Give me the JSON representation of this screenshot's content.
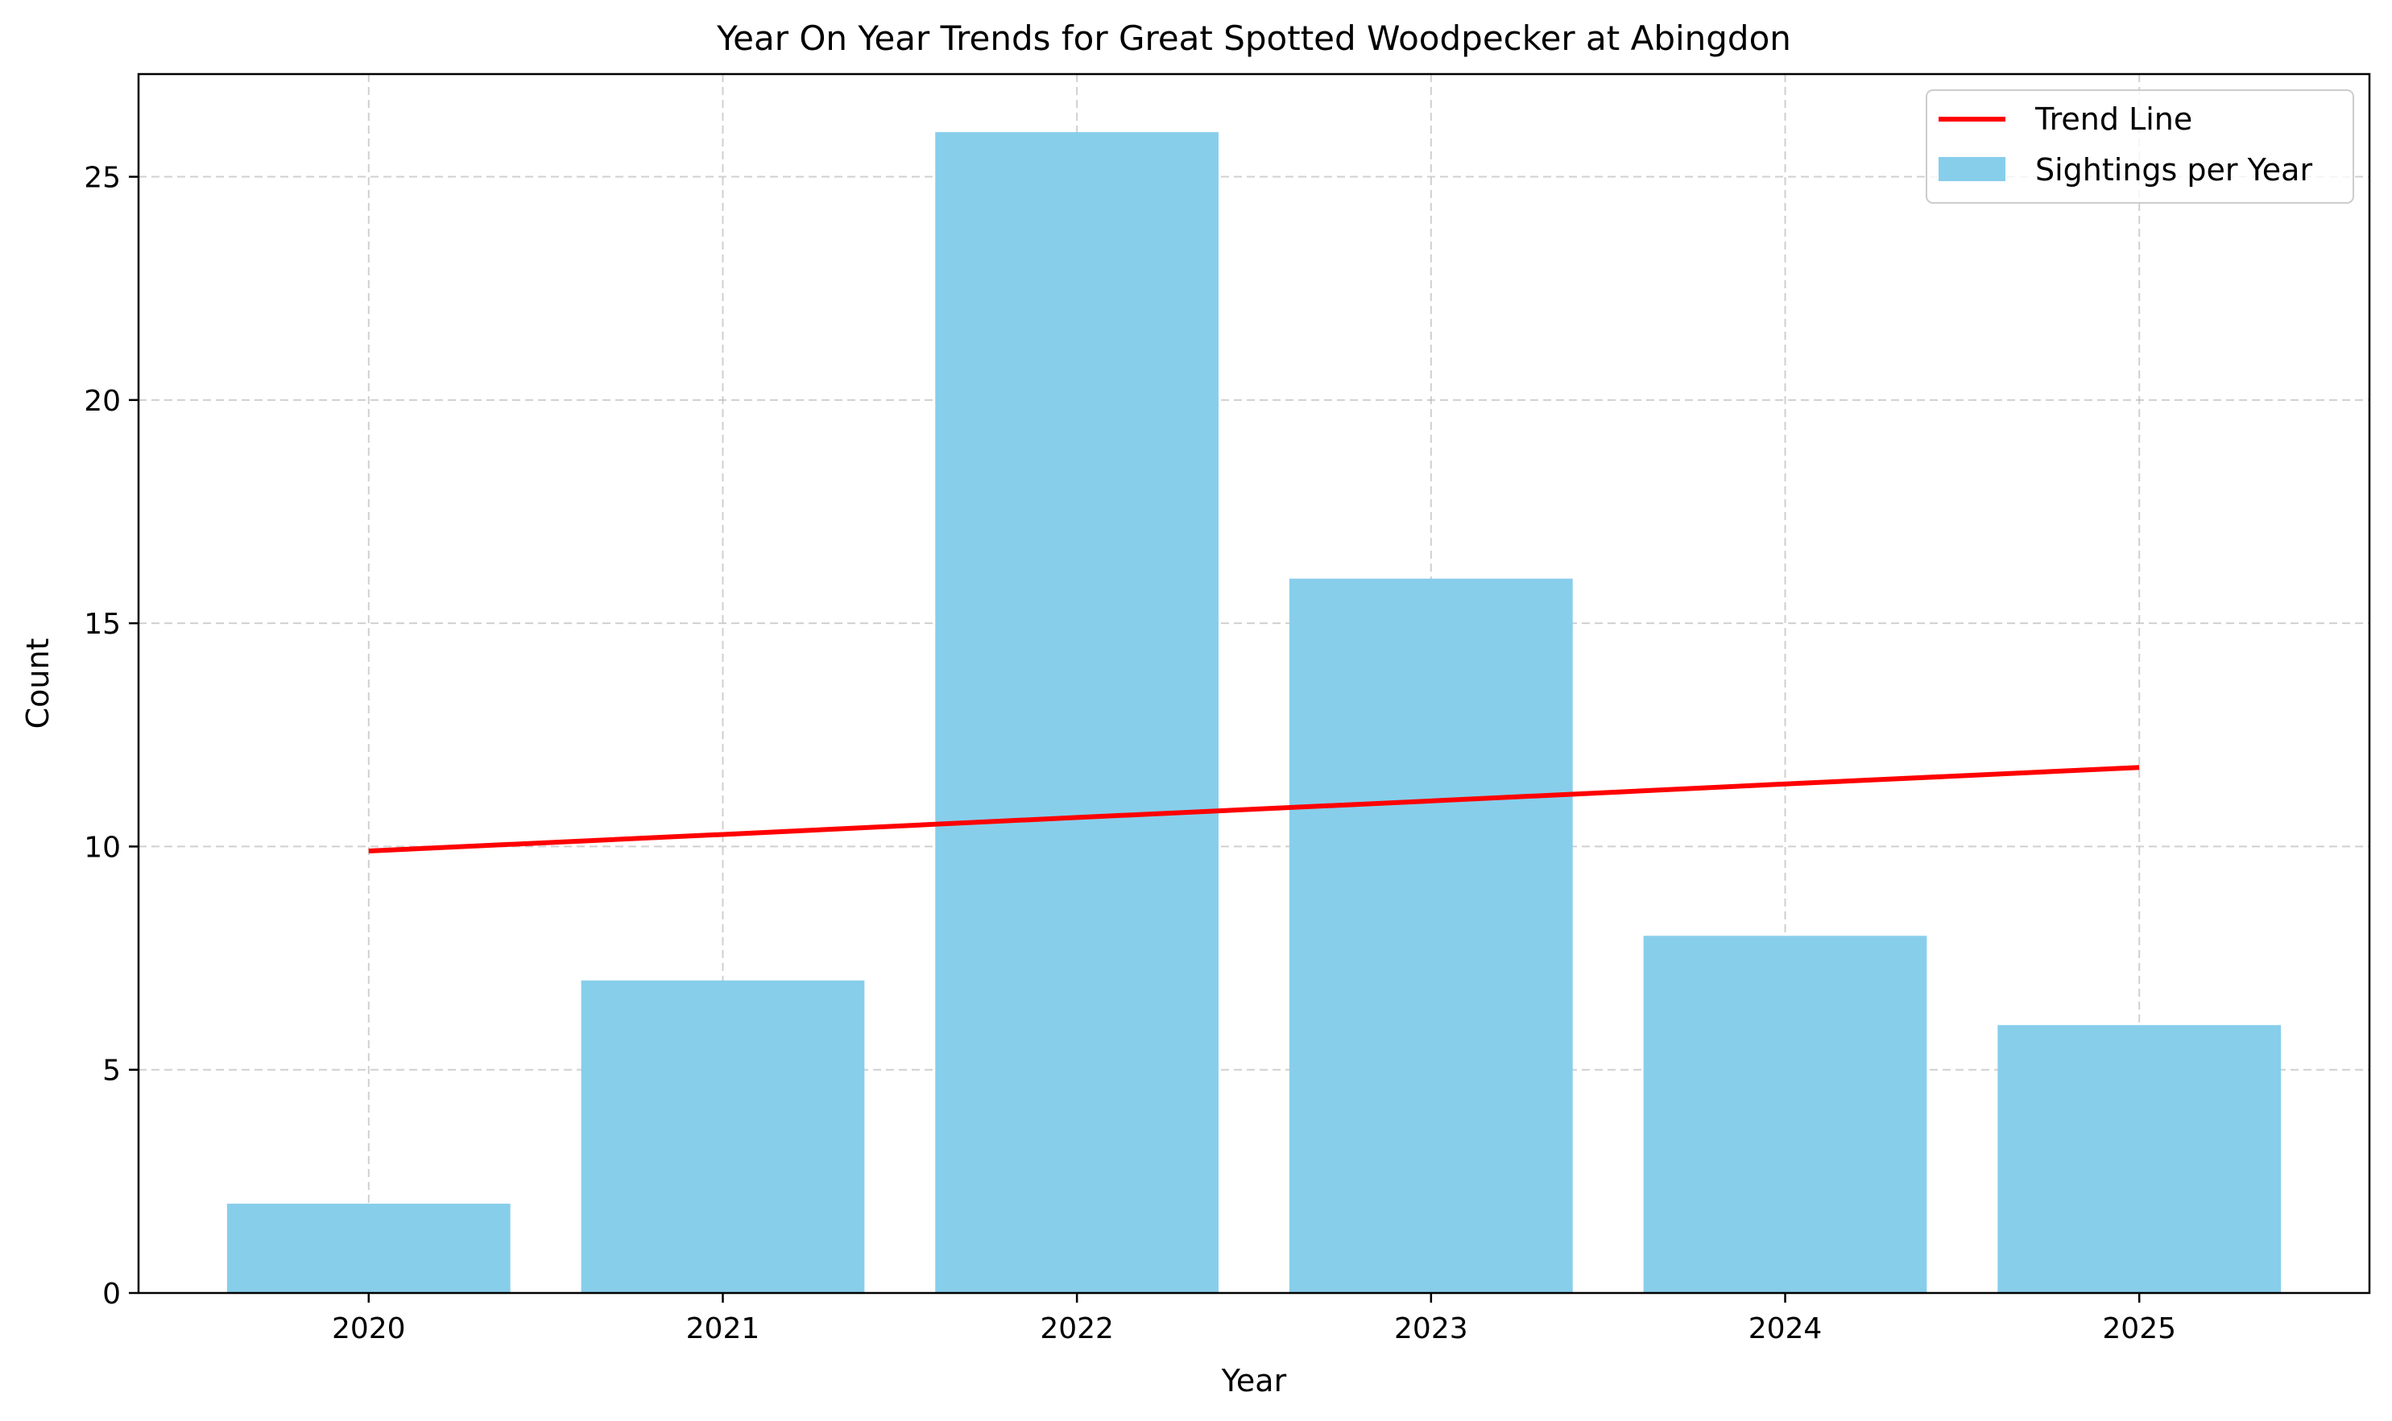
{
  "chart_data": {
    "type": "bar",
    "title": "Year On Year Trends for Great Spotted Woodpecker at Abingdon",
    "xlabel": "Year",
    "ylabel": "Count",
    "categories": [
      "2020",
      "2021",
      "2022",
      "2023",
      "2024",
      "2025"
    ],
    "ylim": [
      0,
      27.3
    ],
    "yticks": [
      0,
      5,
      10,
      15,
      20,
      25
    ],
    "grid": true,
    "legend_position": "top-right",
    "series": [
      {
        "name": "Sightings per Year",
        "type": "bar",
        "color": "#87CEEB",
        "values": [
          2,
          7,
          26,
          16,
          8,
          6
        ]
      },
      {
        "name": "Trend Line",
        "type": "line",
        "color": "#FF0000",
        "values": [
          9.9,
          10.27,
          10.65,
          11.02,
          11.4,
          11.77
        ]
      }
    ]
  }
}
